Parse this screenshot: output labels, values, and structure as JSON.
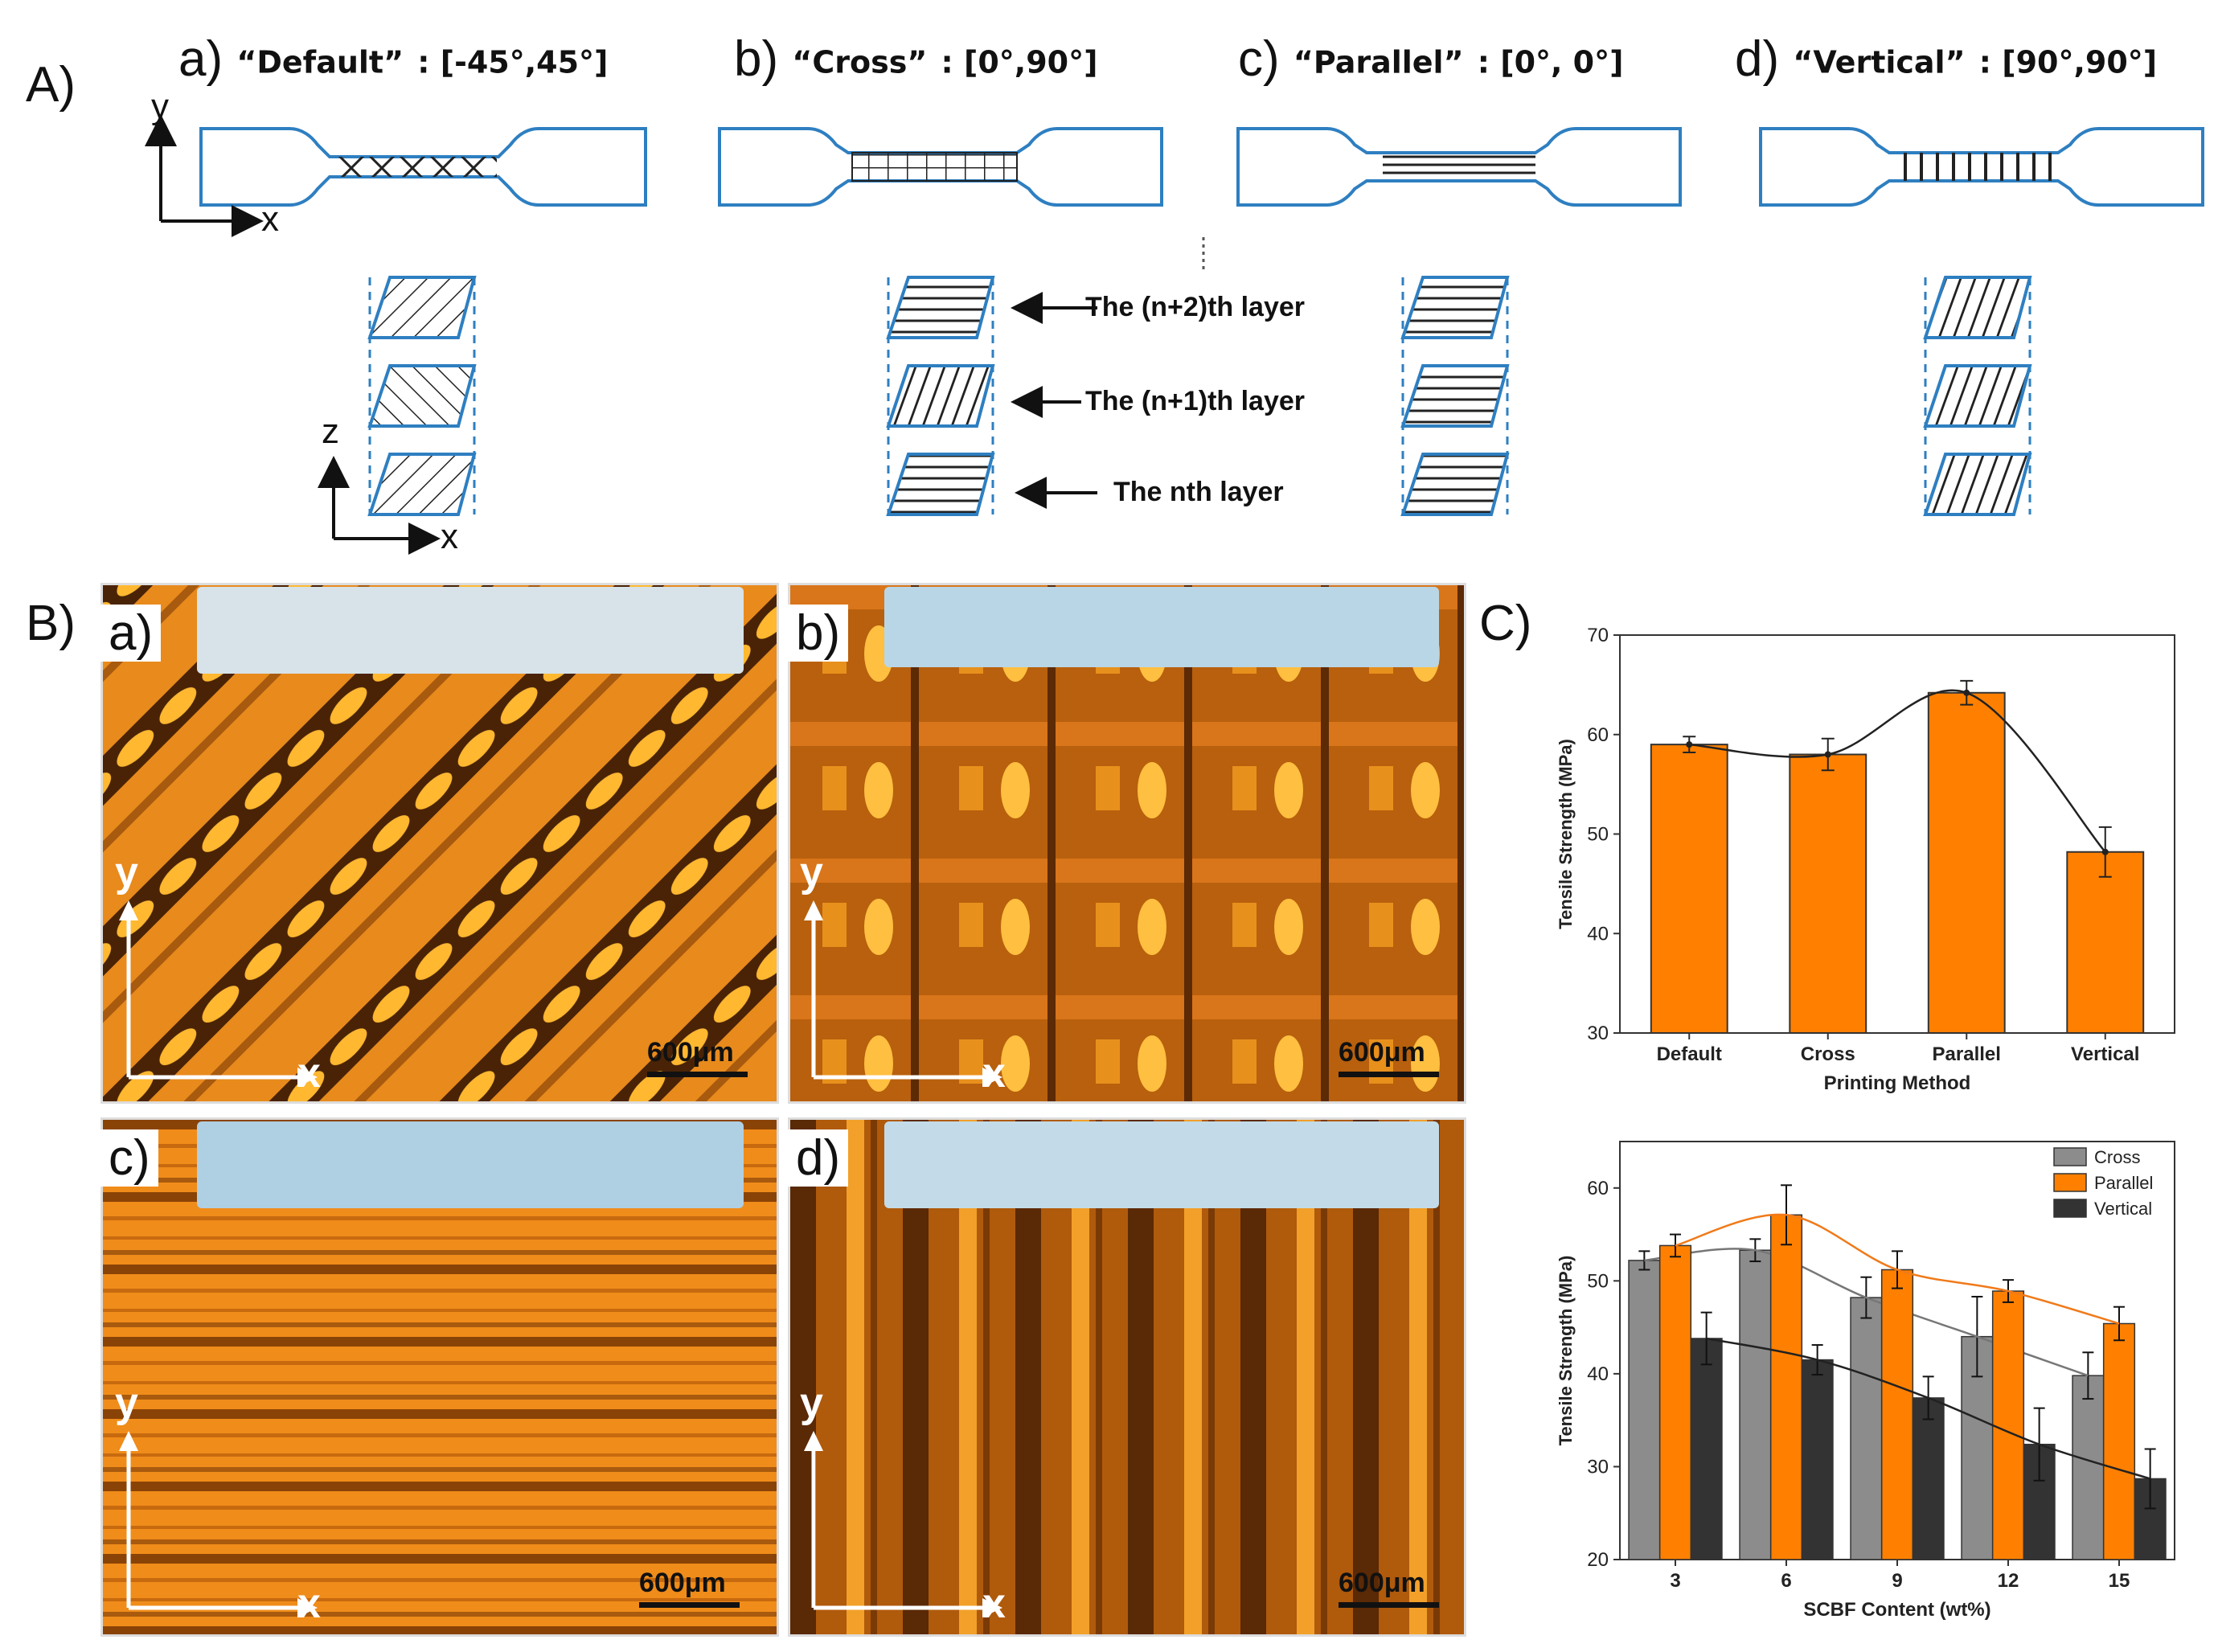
{
  "panel_A": {
    "label": "A)",
    "subpanels": [
      {
        "letter": "a)",
        "name": "“Default”",
        "angles": ": [-45°,45°]"
      },
      {
        "letter": "b)",
        "name": "“Cross”",
        "angles": ": [0°,90°]"
      },
      {
        "letter": "c)",
        "name": "“Parallel”",
        "angles": ": [0°, 0°]"
      },
      {
        "letter": "d)",
        "name": "“Vertical”",
        "angles": ": [90°,90°]"
      }
    ],
    "axis_top": {
      "y": "y",
      "x": "x"
    },
    "axis_layers": {
      "z": "z",
      "x": "x"
    },
    "layer_labels": [
      "The (n+2)th layer",
      "The (n+1)th layer",
      "The nth layer"
    ]
  },
  "panel_B": {
    "label": "B)",
    "images": [
      {
        "letter": "a)",
        "scale": "600μm",
        "axis_y": "y",
        "axis_x": "x"
      },
      {
        "letter": "b)",
        "scale": "600μm",
        "axis_y": "y",
        "axis_x": "x"
      },
      {
        "letter": "c)",
        "scale": "600μm",
        "axis_y": "y",
        "axis_x": "x"
      },
      {
        "letter": "d)",
        "scale": "600μm",
        "axis_y": "y",
        "axis_x": "x"
      }
    ]
  },
  "panel_C": {
    "label": "C)"
  },
  "colors": {
    "orange": "#ff8000",
    "gray": "#8c8c8c",
    "dark": "#333333",
    "blue_outline": "#2e7fc1"
  },
  "chart_data": [
    {
      "type": "bar",
      "xlabel": "Printing Method",
      "ylabel": "Tensile Strength (MPa)",
      "categories": [
        "Default",
        "Cross",
        "Parallel",
        "Vertical"
      ],
      "values": [
        59.0,
        58.0,
        64.2,
        48.2
      ],
      "errors": [
        0.8,
        1.6,
        1.2,
        2.5
      ],
      "ylim": [
        30,
        70
      ],
      "yticks": [
        30,
        40,
        50,
        60,
        70
      ],
      "trend_line": true
    },
    {
      "type": "bar",
      "xlabel": "SCBF Content (wt%)",
      "ylabel": "Tensile Strength (MPa)",
      "categories": [
        "3",
        "6",
        "9",
        "12",
        "15"
      ],
      "series": [
        {
          "name": "Cross",
          "values": [
            52.2,
            53.3,
            48.2,
            44.0,
            39.8
          ],
          "errors": [
            1.0,
            1.2,
            2.2,
            4.3,
            2.5
          ]
        },
        {
          "name": "Parallel",
          "values": [
            53.8,
            57.1,
            51.2,
            48.9,
            45.4
          ],
          "errors": [
            1.2,
            3.2,
            2.0,
            1.2,
            1.8
          ]
        },
        {
          "name": "Vertical",
          "values": [
            43.8,
            41.5,
            37.4,
            32.4,
            28.7
          ],
          "errors": [
            2.8,
            1.6,
            2.3,
            3.9,
            3.2
          ]
        }
      ],
      "ylim": [
        20,
        65
      ],
      "yticks": [
        20,
        30,
        40,
        50,
        60
      ],
      "legend": "top-right"
    }
  ]
}
